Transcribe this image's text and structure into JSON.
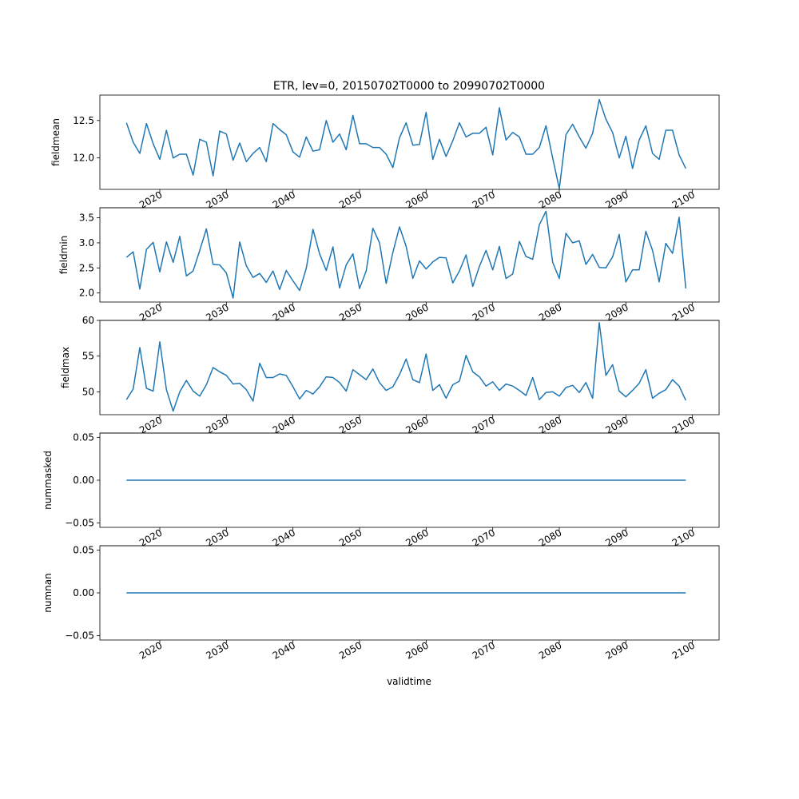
{
  "chart_data": {
    "type": "line",
    "title": "ETR, lev=0, 20150702T0000 to 20990702T0000",
    "xlabel": "validtime",
    "x_range": [
      2015,
      2099
    ],
    "x_domain": [
      2011,
      2104
    ],
    "x_ticks": [
      "2020",
      "2030",
      "2040",
      "2050",
      "2060",
      "2070",
      "2080",
      "2090",
      "2100"
    ],
    "line_color": "#1f77b4",
    "grid": false,
    "panels": [
      {
        "ylabel": "fieldmean",
        "ylim": [
          11.58,
          12.84
        ],
        "yticks": [
          "12.0",
          "12.5"
        ],
        "values": [
          12.47,
          12.21,
          12.06,
          12.46,
          12.19,
          11.98,
          12.37,
          12.0,
          12.05,
          12.05,
          11.77,
          12.25,
          12.21,
          11.76,
          12.36,
          12.32,
          11.97,
          12.2,
          11.95,
          12.06,
          12.14,
          11.95,
          12.46,
          12.38,
          12.31,
          12.08,
          12.01,
          12.28,
          12.09,
          12.11,
          12.5,
          12.21,
          12.32,
          12.11,
          12.57,
          12.19,
          12.19,
          12.14,
          12.14,
          12.05,
          11.87,
          12.27,
          12.47,
          12.17,
          12.18,
          12.61,
          11.98,
          12.25,
          12.02,
          12.23,
          12.47,
          12.28,
          12.33,
          12.33,
          12.41,
          12.04,
          12.67,
          12.24,
          12.34,
          12.28,
          12.05,
          12.05,
          12.14,
          12.43,
          12.0,
          11.59,
          12.31,
          12.45,
          12.28,
          12.13,
          12.33,
          12.78,
          12.52,
          12.34,
          12.0,
          12.29,
          11.86,
          12.24,
          12.43,
          12.06,
          11.98,
          12.37,
          12.37,
          12.04,
          11.86
        ]
      },
      {
        "ylabel": "fieldmin",
        "ylim": [
          1.82,
          3.7
        ],
        "yticks": [
          "2.0",
          "2.5",
          "3.0",
          "3.5"
        ],
        "values": [
          2.71,
          2.82,
          2.08,
          2.87,
          3.01,
          2.42,
          3.02,
          2.61,
          3.13,
          2.34,
          2.44,
          2.85,
          3.28,
          2.57,
          2.56,
          2.4,
          1.9,
          3.02,
          2.54,
          2.31,
          2.39,
          2.21,
          2.44,
          2.07,
          2.45,
          2.24,
          2.05,
          2.49,
          3.27,
          2.78,
          2.45,
          2.92,
          2.1,
          2.56,
          2.78,
          2.09,
          2.44,
          3.29,
          3.0,
          2.19,
          2.81,
          3.32,
          2.93,
          2.29,
          2.64,
          2.48,
          2.62,
          2.71,
          2.7,
          2.2,
          2.44,
          2.76,
          2.13,
          2.53,
          2.85,
          2.46,
          2.93,
          2.29,
          2.38,
          3.03,
          2.73,
          2.67,
          3.36,
          3.63,
          2.61,
          2.29,
          3.19,
          3.0,
          3.04,
          2.57,
          2.77,
          2.51,
          2.5,
          2.72,
          3.17,
          2.22,
          2.46,
          2.46,
          3.23,
          2.85,
          2.22,
          2.99,
          2.79,
          3.51,
          2.09
        ]
      },
      {
        "ylabel": "fieldmax",
        "ylim": [
          46.8,
          60.0
        ],
        "yticks": [
          "50",
          "55",
          "60"
        ],
        "values": [
          48.9,
          50.4,
          56.2,
          50.5,
          50.1,
          57.0,
          50.3,
          47.3,
          50.0,
          51.6,
          50.1,
          49.4,
          51.0,
          53.4,
          52.8,
          52.3,
          51.1,
          51.2,
          50.3,
          48.7,
          54.0,
          52.0,
          52.0,
          52.5,
          52.3,
          50.7,
          49.0,
          50.2,
          49.7,
          50.7,
          52.1,
          52.0,
          51.3,
          50.1,
          53.1,
          52.4,
          51.7,
          53.2,
          51.3,
          50.2,
          50.7,
          52.4,
          54.6,
          51.7,
          51.3,
          55.3,
          50.2,
          51.0,
          49.1,
          51.0,
          51.5,
          55.1,
          52.8,
          52.1,
          50.8,
          51.4,
          50.2,
          51.1,
          50.8,
          50.2,
          49.5,
          52.0,
          48.9,
          49.9,
          50.0,
          49.4,
          50.6,
          50.9,
          49.9,
          51.3,
          49.1,
          59.7,
          52.3,
          53.8,
          50.1,
          49.3,
          50.2,
          51.2,
          53.1,
          49.1,
          49.8,
          50.3,
          51.7,
          50.8,
          48.8
        ]
      },
      {
        "ylabel": "nummasked",
        "ylim": [
          -0.055,
          0.055
        ],
        "yticks": [
          "−0.05",
          "0.00",
          "0.05"
        ],
        "constant": 0.0
      },
      {
        "ylabel": "numnan",
        "ylim": [
          -0.055,
          0.055
        ],
        "yticks": [
          "−0.05",
          "0.00",
          "0.05"
        ],
        "constant": 0.0
      }
    ]
  }
}
